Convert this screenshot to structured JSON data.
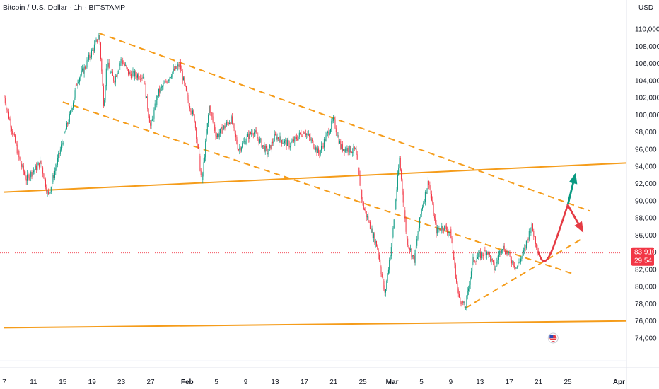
{
  "header": {
    "title": "Bitcoin / U.S. Dollar · 1h · BITSTAMP",
    "currency": "USD"
  },
  "chart_data": {
    "type": "candlestick",
    "title": "Bitcoin / U.S. Dollar · 1h · BITSTAMP",
    "xlabel": "",
    "ylabel": "USD",
    "ylim": [
      72000,
      111000
    ],
    "grid": false,
    "y_ticks": [
      110000,
      108000,
      106000,
      104000,
      102000,
      100000,
      98000,
      96000,
      94000,
      92000,
      90000,
      88000,
      86000,
      84000,
      82000,
      80000,
      78000,
      76000,
      74000
    ],
    "y_tick_labels": [
      "110,000",
      "108,000",
      "106,000",
      "104,000",
      "102,000",
      "100,000",
      "98,000",
      "96,000",
      "94,000",
      "92,000",
      "90,000",
      "88,000",
      "86,000",
      "84,000",
      "82,000",
      "80,000",
      "78,000",
      "76,000",
      "74,000"
    ],
    "x_ticks": [
      "7",
      "11",
      "15",
      "19",
      "23",
      "27",
      "Feb",
      "5",
      "9",
      "13",
      "17",
      "21",
      "25",
      "Mar",
      "5",
      "9",
      "13",
      "17",
      "21",
      "25",
      "Apr"
    ],
    "x_ticks_bold": [
      "Feb",
      "Mar",
      "Apr"
    ],
    "price_path": [
      [
        "Jan 7",
        102000
      ],
      [
        "Jan 9",
        95000
      ],
      [
        "Jan 10",
        92500
      ],
      [
        "Jan 12",
        94500
      ],
      [
        "Jan 13",
        90500
      ],
      [
        "Jan 15",
        97000
      ],
      [
        "Jan 16",
        100000
      ],
      [
        "Jan 17",
        104000
      ],
      [
        "Jan 18",
        105500
      ],
      [
        "Jan 20",
        109300
      ],
      [
        "Jan 20.6",
        101000
      ],
      [
        "Jan 21",
        106000
      ],
      [
        "Jan 22",
        104000
      ],
      [
        "Jan 23",
        106500
      ],
      [
        "Jan 24",
        104800
      ],
      [
        "Jan 26",
        104500
      ],
      [
        "Jan 27",
        98500
      ],
      [
        "Jan 28",
        102500
      ],
      [
        "Jan 30",
        105000
      ],
      [
        "Jan 31",
        105800
      ],
      [
        "Feb 1",
        102000
      ],
      [
        "Feb 2",
        99500
      ],
      [
        "Feb 3",
        92000
      ],
      [
        "Feb 4",
        101000
      ],
      [
        "Feb 5",
        97500
      ],
      [
        "Feb 7",
        99500
      ],
      [
        "Feb 8",
        96000
      ],
      [
        "Feb 10",
        98200
      ],
      [
        "Feb 12",
        95500
      ],
      [
        "Feb 13",
        97500
      ],
      [
        "Feb 15",
        96500
      ],
      [
        "Feb 17",
        98200
      ],
      [
        "Feb 19",
        95500
      ],
      [
        "Feb 21",
        99400
      ],
      [
        "Feb 22",
        96200
      ],
      [
        "Feb 24",
        95800
      ],
      [
        "Feb 25",
        89500
      ],
      [
        "Feb 26",
        87000
      ],
      [
        "Feb 27",
        84500
      ],
      [
        "Feb 28",
        79000
      ],
      [
        "Mar 1",
        85500
      ],
      [
        "Mar 2",
        94900
      ],
      [
        "Mar 3",
        85500
      ],
      [
        "Mar 4",
        83000
      ],
      [
        "Mar 5",
        89000
      ],
      [
        "Mar 6",
        92400
      ],
      [
        "Mar 7",
        86500
      ],
      [
        "Mar 8",
        87000
      ],
      [
        "Mar 9",
        86200
      ],
      [
        "Mar 10",
        79000
      ],
      [
        "Mar 11",
        77500
      ],
      [
        "Mar 12",
        83000
      ],
      [
        "Mar 14",
        84200
      ],
      [
        "Mar 15",
        82000
      ],
      [
        "Mar 16",
        84800
      ],
      [
        "Mar 17",
        83500
      ],
      [
        "Mar 18",
        82200
      ],
      [
        "Mar 19",
        84000
      ],
      [
        "Mar 20",
        87200
      ],
      [
        "Mar 21",
        84000
      ]
    ],
    "last_price": 83910,
    "last_price_label": "83,910",
    "countdown": "29:54",
    "trendlines": [
      {
        "name": "upper-support",
        "style": "solid",
        "color": "#f59c1a",
        "from": [
          "Jan 7",
          91000
        ],
        "to": [
          "Apr 2",
          94400
        ]
      },
      {
        "name": "lower-support",
        "style": "solid",
        "color": "#f59c1a",
        "from": [
          "Jan 7",
          75200
        ],
        "to": [
          "Apr 2",
          76000
        ]
      },
      {
        "name": "channel-top",
        "style": "dashed",
        "color": "#f59c1a",
        "from": [
          "Jan 20",
          109500
        ],
        "to": [
          "Mar 28",
          88800
        ]
      },
      {
        "name": "channel-bottom",
        "style": "dashed",
        "color": "#f59c1a",
        "from": [
          "Jan 15",
          101500
        ],
        "to": [
          "Mar 26",
          81400
        ]
      },
      {
        "name": "rising-support",
        "style": "dashed",
        "color": "#f59c1a",
        "from": [
          "Mar 11",
          77500
        ],
        "to": [
          "Mar 27",
          85600
        ]
      }
    ],
    "projection": {
      "path": [
        [
          "Mar 21",
          84000
        ],
        [
          "Mar 22",
          82300
        ],
        [
          "Mar 23",
          84500
        ],
        [
          "Mar 25",
          89500
        ]
      ],
      "bull_target": {
        "to": [
          "Mar 26",
          93000
        ],
        "color": "#089981"
      },
      "bear_target": {
        "to": [
          "Mar 27",
          86500
        ],
        "color": "#e53b44"
      },
      "path_color": "#e53b44"
    },
    "colors": {
      "up": "#089981",
      "down": "#f23645",
      "trend": "#f59c1a",
      "last_price_line": "#f23645",
      "tag_bg": "#f23645"
    },
    "event_marker": "us-flag-icon"
  }
}
